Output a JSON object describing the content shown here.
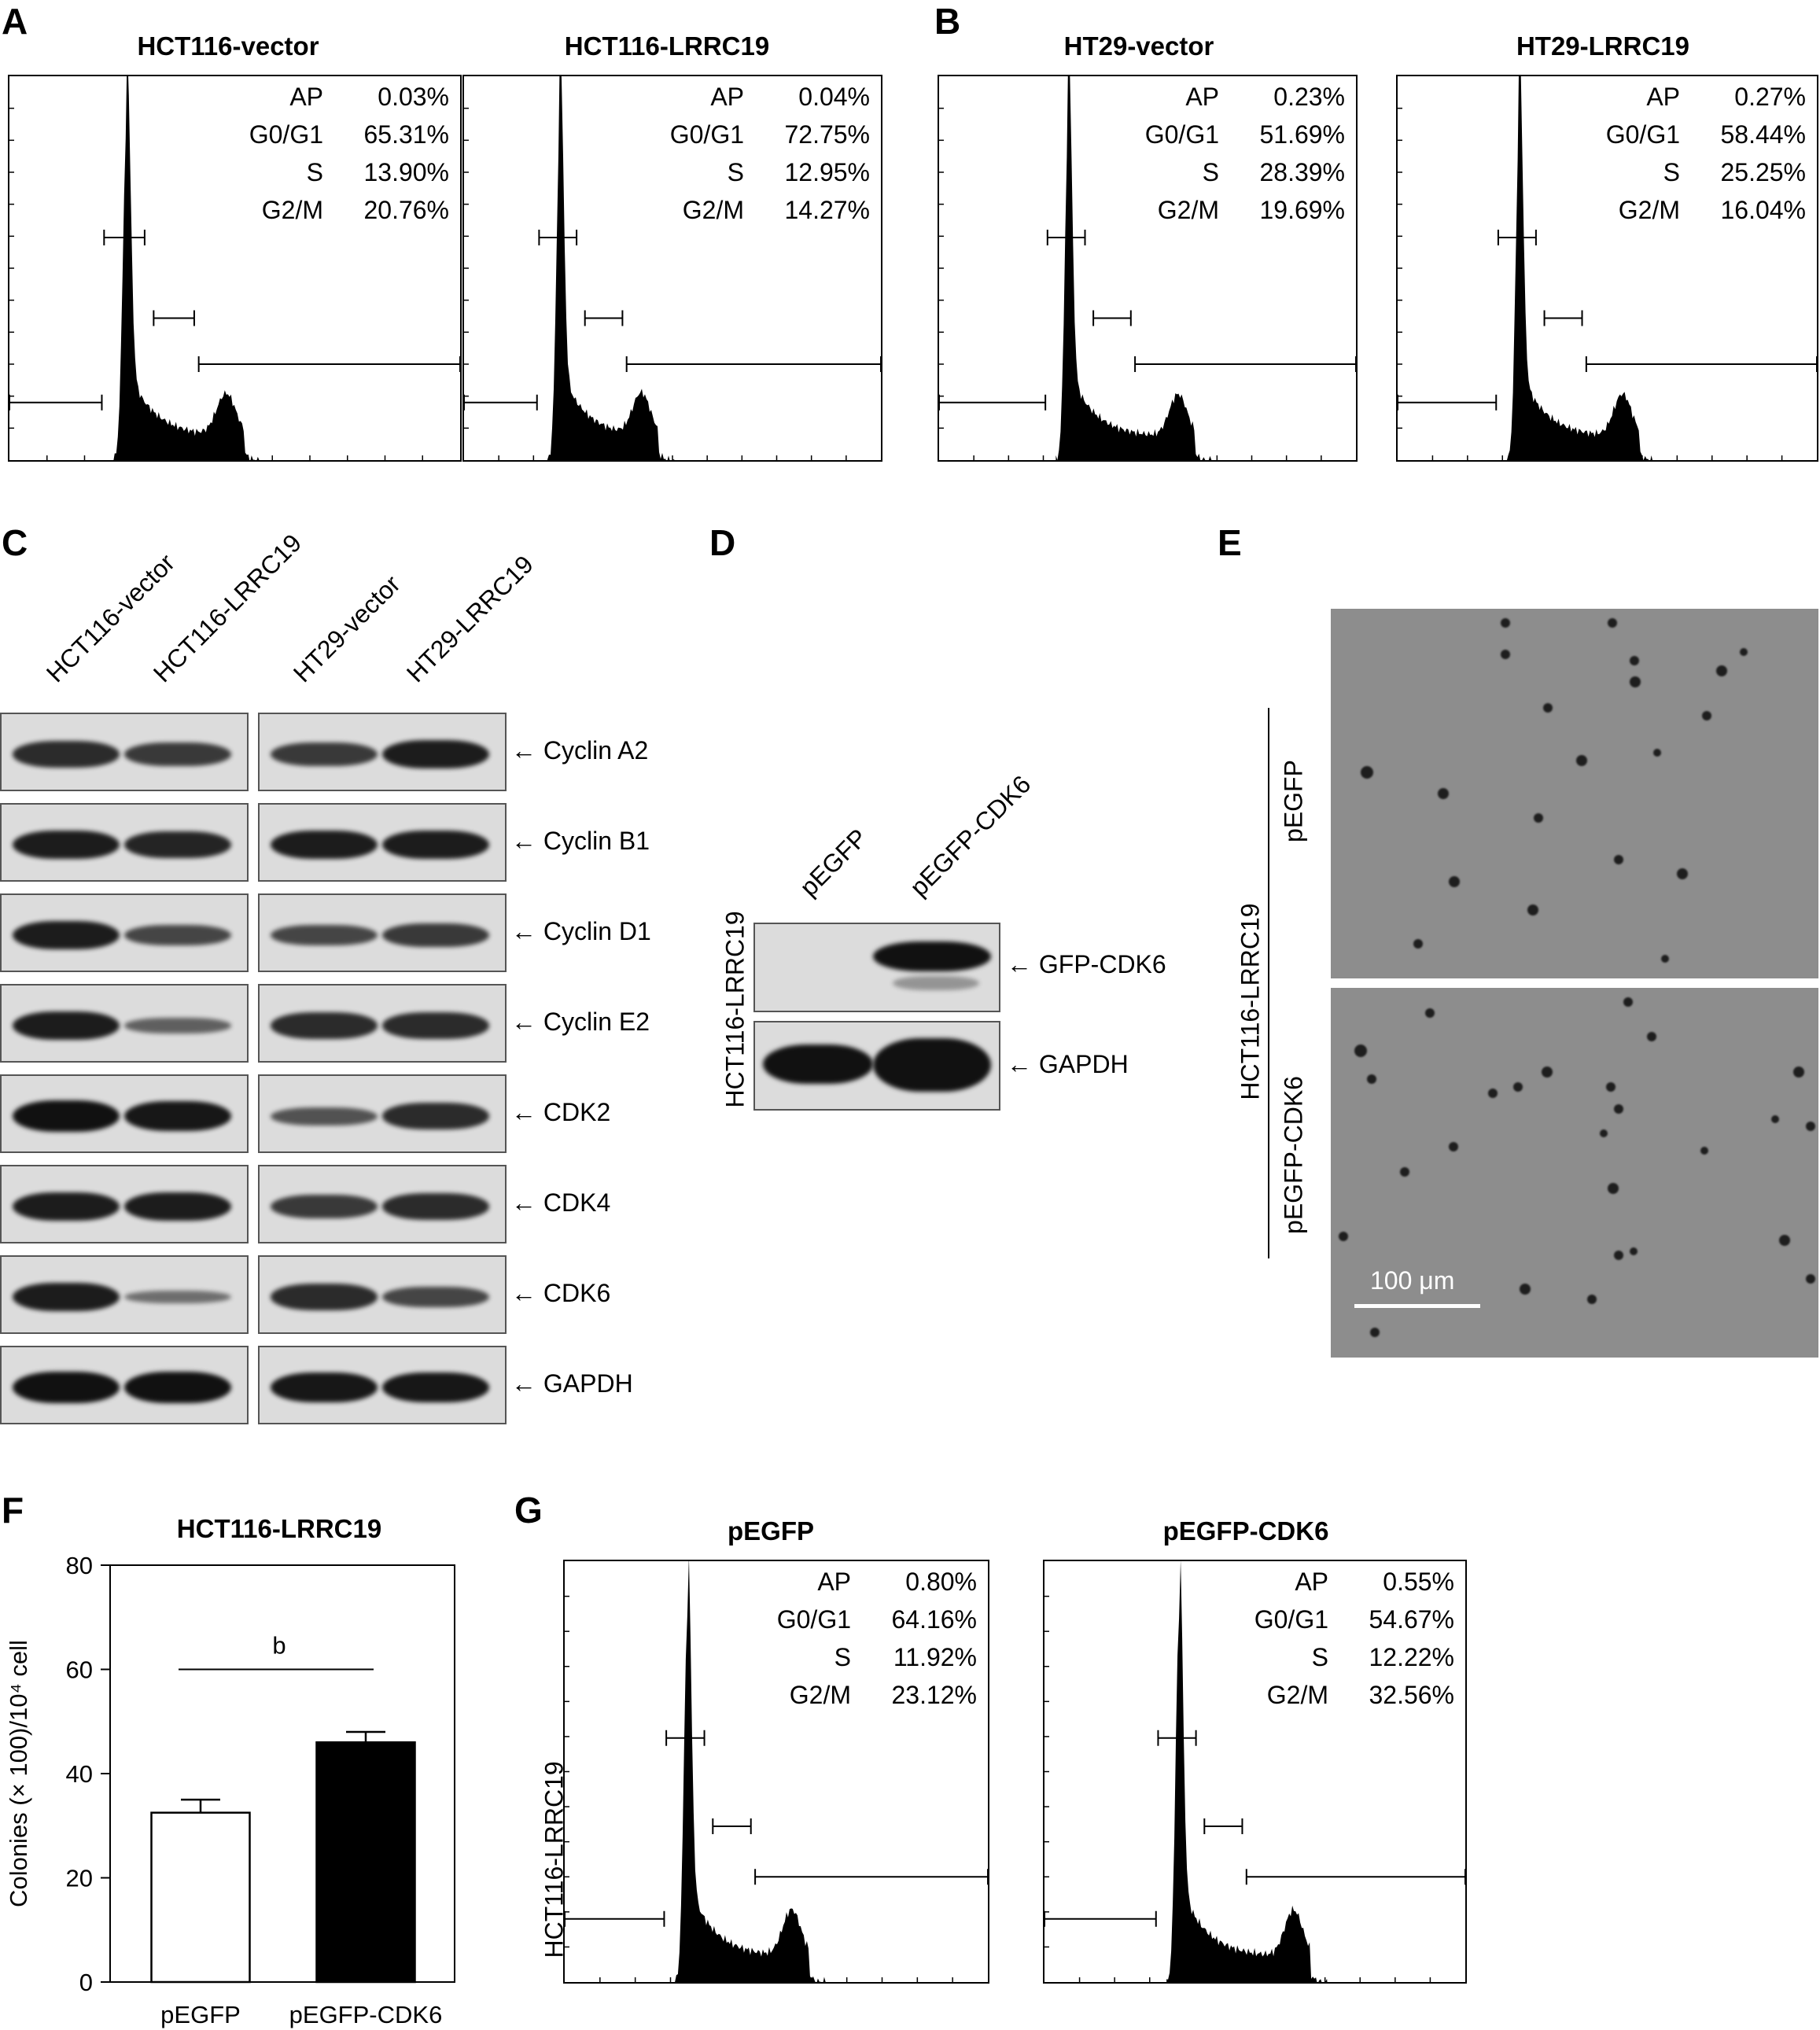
{
  "panels": {
    "a": "A",
    "b": "B",
    "c": "C",
    "d": "D",
    "e": "E",
    "f": "F",
    "g": "G"
  },
  "flow": [
    {
      "id": "hct-vector",
      "title": "HCT116-vector",
      "stats": [
        [
          "AP",
          "0.03%"
        ],
        [
          "G0/G1",
          "65.31%"
        ],
        [
          "S",
          "13.90%"
        ],
        [
          "G2/M",
          "20.76%"
        ]
      ]
    },
    {
      "id": "hct-lrrc19",
      "title": "HCT116-LRRC19",
      "stats": [
        [
          "AP",
          "0.04%"
        ],
        [
          "G0/G1",
          "72.75%"
        ],
        [
          "S",
          "12.95%"
        ],
        [
          "G2/M",
          "14.27%"
        ]
      ]
    },
    {
      "id": "ht29-vector",
      "title": "HT29-vector",
      "stats": [
        [
          "AP",
          "0.23%"
        ],
        [
          "G0/G1",
          "51.69%"
        ],
        [
          "S",
          "28.39%"
        ],
        [
          "G2/M",
          "19.69%"
        ]
      ]
    },
    {
      "id": "ht29-lrrc19",
      "title": "HT29-LRRC19",
      "stats": [
        [
          "AP",
          "0.27%"
        ],
        [
          "G0/G1",
          "58.44%"
        ],
        [
          "S",
          "25.25%"
        ],
        [
          "G2/M",
          "16.04%"
        ]
      ]
    },
    {
      "id": "pegfp",
      "title": "pEGFP",
      "stats": [
        [
          "AP",
          "0.80%"
        ],
        [
          "G0/G1",
          "64.16%"
        ],
        [
          "S",
          "11.92%"
        ],
        [
          "G2/M",
          "23.12%"
        ]
      ]
    },
    {
      "id": "pegfp-cdk6",
      "title": "pEGFP-CDK6",
      "stats": [
        [
          "AP",
          "0.55%"
        ],
        [
          "G0/G1",
          "54.67%"
        ],
        [
          "S",
          "12.22%"
        ],
        [
          "G2/M",
          "32.56%"
        ]
      ]
    }
  ],
  "blot_c": {
    "lanes": [
      "HCT116-vector",
      "HCT116-LRRC19",
      "HT29-vector",
      "HT29-LRRC19"
    ],
    "proteins": [
      "Cyclin A2",
      "Cyclin B1",
      "Cyclin D1",
      "Cyclin E2",
      "CDK2",
      "CDK4",
      "CDK6",
      "GAPDH"
    ],
    "arrow": "←"
  },
  "blot_d": {
    "lanes": [
      "pEGFP",
      "pEGFP-CDK6"
    ],
    "side_label": "HCT116-LRRC19",
    "proteins": [
      "GFP-CDK6",
      "GAPDH"
    ]
  },
  "panel_e": {
    "side_label": "HCT116-LRRC19",
    "rows": [
      "pEGFP",
      "pEGFP-CDK6"
    ],
    "scale_bar": "100 μm"
  },
  "panel_g_side_label": "HCT116-LRRC19",
  "chart_data": {
    "type": "bar",
    "title": "HCT116-LRRC19",
    "categories": [
      "pEGFP",
      "pEGFP-CDK6"
    ],
    "values": [
      32.5,
      46
    ],
    "errors": [
      2.5,
      2
    ],
    "colors": [
      "#ffffff",
      "#000000"
    ],
    "ylabel": "Colonies (× 100)/10⁴ cell",
    "ylim": [
      0,
      80
    ],
    "yticks": [
      0,
      20,
      40,
      60,
      80
    ],
    "annotation": "b"
  }
}
